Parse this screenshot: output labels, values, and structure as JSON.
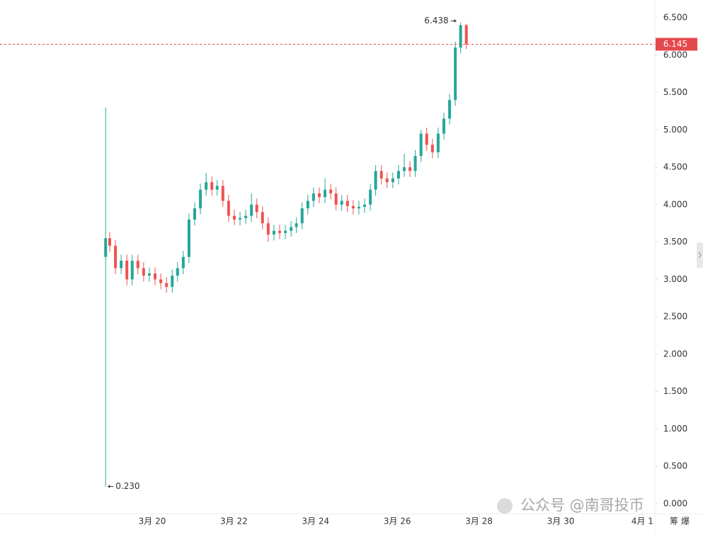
{
  "chart_data": {
    "type": "candlestick",
    "x": [
      18.86,
      18.96,
      19.1,
      19.24,
      19.38,
      19.51,
      19.65,
      19.79,
      19.93,
      20.07,
      20.21,
      20.35,
      20.49,
      20.62,
      20.76,
      20.9,
      21.04,
      21.18,
      21.32,
      21.46,
      21.59,
      21.73,
      21.87,
      22.01,
      22.15,
      22.29,
      22.43,
      22.56,
      22.7,
      22.84,
      22.98,
      23.12,
      23.26,
      23.4,
      23.53,
      23.67,
      23.81,
      23.95,
      24.09,
      24.23,
      24.37,
      24.5,
      24.64,
      24.78,
      24.92,
      25.06,
      25.2,
      25.34,
      25.47,
      25.61,
      25.75,
      25.89,
      26.03,
      26.17,
      26.31,
      26.44,
      26.58,
      26.72,
      26.86,
      27.0,
      27.14,
      27.28,
      27.42,
      27.55,
      27.69
    ],
    "open": [
      3.3,
      3.55,
      3.45,
      3.15,
      3.25,
      3.0,
      3.25,
      3.15,
      3.05,
      3.08,
      3.0,
      2.95,
      2.9,
      3.05,
      3.15,
      3.3,
      3.8,
      3.95,
      4.2,
      4.3,
      4.2,
      4.25,
      4.05,
      3.85,
      3.8,
      3.82,
      3.85,
      4.0,
      3.9,
      3.75,
      3.6,
      3.65,
      3.62,
      3.65,
      3.7,
      3.75,
      3.95,
      4.05,
      4.15,
      4.1,
      4.2,
      4.15,
      4.0,
      4.05,
      3.98,
      3.95,
      3.97,
      4.0,
      4.2,
      4.45,
      4.35,
      4.3,
      4.35,
      4.45,
      4.5,
      4.45,
      4.65,
      4.95,
      4.8,
      4.7,
      4.95,
      5.15,
      5.4,
      6.1,
      6.4
    ],
    "high": [
      5.3,
      3.63,
      3.53,
      3.33,
      3.33,
      3.33,
      3.33,
      3.23,
      3.16,
      3.16,
      3.08,
      3.03,
      3.13,
      3.23,
      3.38,
      3.88,
      4.03,
      4.28,
      4.42,
      4.38,
      4.33,
      4.33,
      4.13,
      3.93,
      3.9,
      3.93,
      4.15,
      4.08,
      3.98,
      3.83,
      3.73,
      3.73,
      3.73,
      3.78,
      3.83,
      4.03,
      4.13,
      4.23,
      4.23,
      4.35,
      4.28,
      4.23,
      4.13,
      4.13,
      4.06,
      4.05,
      4.08,
      4.28,
      4.53,
      4.53,
      4.43,
      4.43,
      4.53,
      4.68,
      4.58,
      4.73,
      5.0,
      5.03,
      4.88,
      5.03,
      5.23,
      5.48,
      6.18,
      6.438,
      6.42
    ],
    "low": [
      0.23,
      3.37,
      3.07,
      3.07,
      2.92,
      2.92,
      3.07,
      2.97,
      2.97,
      2.92,
      2.87,
      2.82,
      2.82,
      2.97,
      3.07,
      3.22,
      3.72,
      3.87,
      4.12,
      4.12,
      4.12,
      3.97,
      3.77,
      3.72,
      3.72,
      3.74,
      3.77,
      3.82,
      3.67,
      3.5,
      3.52,
      3.54,
      3.54,
      3.57,
      3.62,
      3.67,
      3.87,
      3.97,
      4.02,
      4.02,
      4.07,
      3.92,
      3.92,
      3.9,
      3.87,
      3.87,
      3.89,
      3.92,
      4.12,
      4.27,
      4.22,
      4.22,
      4.27,
      4.37,
      4.37,
      4.37,
      4.57,
      4.72,
      4.62,
      4.62,
      4.87,
      5.07,
      5.32,
      6.02,
      6.08
    ],
    "close": [
      3.55,
      3.45,
      3.15,
      3.25,
      3.0,
      3.25,
      3.15,
      3.05,
      3.08,
      3.0,
      2.95,
      2.9,
      3.05,
      3.15,
      3.3,
      3.8,
      3.95,
      4.2,
      4.3,
      4.2,
      4.25,
      4.05,
      3.85,
      3.8,
      3.82,
      3.85,
      4.0,
      3.9,
      3.75,
      3.6,
      3.65,
      3.62,
      3.65,
      3.7,
      3.75,
      3.95,
      4.05,
      4.15,
      4.1,
      4.2,
      4.15,
      4.0,
      4.05,
      3.98,
      3.95,
      3.97,
      4.0,
      4.2,
      4.45,
      4.35,
      4.3,
      4.35,
      4.45,
      4.5,
      4.45,
      4.65,
      4.95,
      4.8,
      4.7,
      4.95,
      5.15,
      5.4,
      6.1,
      6.4,
      6.145
    ],
    "up_color": "#26a69a",
    "down_color": "#ef5350",
    "xlim": [
      16.274,
      32.305
    ],
    "xticks": [
      {
        "value": 20,
        "label": "3月 20"
      },
      {
        "value": 22,
        "label": "3月 22"
      },
      {
        "value": 24,
        "label": "3月 24"
      },
      {
        "value": 26,
        "label": "3月 26"
      },
      {
        "value": 28,
        "label": "3月 28"
      },
      {
        "value": 30,
        "label": "3月 30"
      },
      {
        "value": 32,
        "label": "4月 1"
      }
    ],
    "ylim": [
      -0.135,
      6.737
    ],
    "yticks": [
      {
        "value": 0,
        "label": "0.000"
      },
      {
        "value": 0.5,
        "label": "0.500"
      },
      {
        "value": 1,
        "label": "1.000"
      },
      {
        "value": 1.5,
        "label": "1.500"
      },
      {
        "value": 2,
        "label": "2.000"
      },
      {
        "value": 2.5,
        "label": "2.500"
      },
      {
        "value": 3,
        "label": "3.000"
      },
      {
        "value": 3.5,
        "label": "3.500"
      },
      {
        "value": 4,
        "label": "4.000"
      },
      {
        "value": 4.5,
        "label": "4.500"
      },
      {
        "value": 5,
        "label": "5.000"
      },
      {
        "value": 5.5,
        "label": "5.500"
      },
      {
        "value": 6,
        "label": "6.000"
      },
      {
        "value": 6.5,
        "label": "6.500"
      }
    ],
    "min_marker": {
      "value": 0.23,
      "label": "0.230"
    },
    "last_price": 6.145,
    "last_price_color": "#e5484d",
    "watermark": "公众号 @南哥投币",
    "corner_text": "筹 爆"
  }
}
